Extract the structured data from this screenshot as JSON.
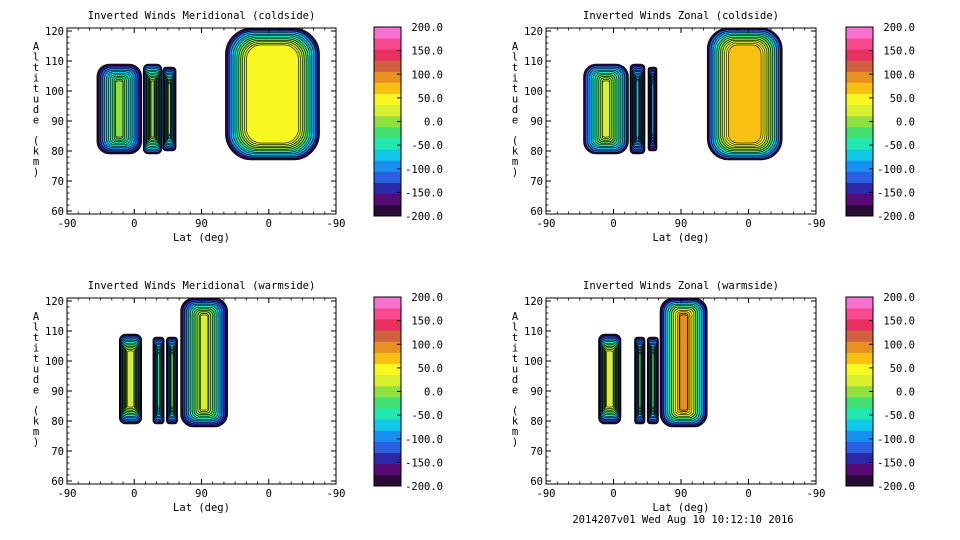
{
  "footer": "2014207v01 Wed Aug 10 10:12:10 2016",
  "colorbar": {
    "ticks": [
      200.0,
      150.0,
      100.0,
      50.0,
      0.0,
      -50.0,
      -100.0,
      -150.0,
      -200.0
    ],
    "tick_labels": [
      "200.0",
      "150.0",
      "100.0",
      "50.0",
      "0.0",
      "-50.0",
      "-100.0",
      "-150.0",
      "-200.0"
    ],
    "colors": [
      "#2a0a36",
      "#5a0a78",
      "#2a2aa8",
      "#2a60e0",
      "#1890f0",
      "#10c8e8",
      "#20e8b0",
      "#40e070",
      "#90e040",
      "#d8f030",
      "#f8f820",
      "#f8c010",
      "#e89020",
      "#d06040",
      "#e83060",
      "#f84890",
      "#f870d0"
    ]
  },
  "chart_data": [
    {
      "type": "heatmap",
      "title": "Inverted Winds Meridional (coldside)",
      "xlabel": "Lat (deg)",
      "ylabel": "Altitude (km)",
      "x_ticks": [
        "-90",
        "0",
        "90",
        "0",
        "-90"
      ],
      "y_ticks": [
        60,
        70,
        80,
        90,
        100,
        110,
        120
      ],
      "ylim": [
        59,
        121
      ],
      "zlim": [
        -200,
        200
      ],
      "blobs": [
        {
          "x": [
            -50,
            10
          ],
          "y": [
            79,
            109
          ],
          "core": [
            -5,
            10
          ]
        },
        {
          "x": [
            12,
            37
          ],
          "y": [
            79,
            109
          ],
          "core": [
            60,
            15
          ]
        },
        {
          "x": [
            38,
            56
          ],
          "y": [
            80,
            108
          ],
          "core": [
            -20,
            0
          ]
        },
        {
          "x": [
            122,
            248
          ],
          "y": [
            77,
            121
          ],
          "core": [
            10,
            45
          ]
        }
      ]
    },
    {
      "type": "heatmap",
      "title": "Inverted Winds Zonal (coldside)",
      "xlabel": "Lat (deg)",
      "ylabel": "Altitude (km)",
      "x_ticks": [
        "-90",
        "0",
        "90",
        "0",
        "-90"
      ],
      "y_ticks": [
        60,
        70,
        80,
        90,
        100,
        110,
        120
      ],
      "ylim": [
        59,
        121
      ],
      "zlim": [
        -200,
        200
      ],
      "blobs": [
        {
          "x": [
            -40,
            20
          ],
          "y": [
            79,
            109
          ],
          "core": [
            15,
            40
          ]
        },
        {
          "x": [
            22,
            42
          ],
          "y": [
            79,
            109
          ],
          "core": [
            -30,
            -60
          ]
        },
        {
          "x": [
            46,
            58
          ],
          "y": [
            80,
            108
          ],
          "core": [
            -60,
            -80
          ]
        },
        {
          "x": [
            125,
            225
          ],
          "y": [
            77,
            121
          ],
          "core": [
            20,
            70
          ]
        }
      ]
    },
    {
      "type": "heatmap",
      "title": "Inverted Winds Meridional (warmside)",
      "xlabel": "Lat (deg)",
      "ylabel": "Altitude (km)",
      "x_ticks": [
        "-90",
        "0",
        "90",
        "0",
        "-90"
      ],
      "y_ticks": [
        60,
        70,
        80,
        90,
        100,
        110,
        120
      ],
      "ylim": [
        59,
        121
      ],
      "zlim": [
        -200,
        200
      ],
      "blobs": [
        {
          "x": [
            -20,
            10
          ],
          "y": [
            79,
            109
          ],
          "core": [
            5,
            30
          ]
        },
        {
          "x": [
            25,
            40
          ],
          "y": [
            79,
            108
          ],
          "core": [
            -20,
            -10
          ]
        },
        {
          "x": [
            43,
            58
          ],
          "y": [
            79,
            108
          ],
          "core": [
            -10,
            0
          ]
        },
        {
          "x": [
            62,
            125
          ],
          "y": [
            78,
            121
          ],
          "core": [
            -10,
            40
          ]
        }
      ]
    },
    {
      "type": "heatmap",
      "title": "Inverted Winds Zonal (warmside)",
      "xlabel": "Lat (deg)",
      "ylabel": "Altitude (km)",
      "x_ticks": [
        "-90",
        "0",
        "90",
        "0",
        "-90"
      ],
      "y_ticks": [
        60,
        70,
        80,
        90,
        100,
        110,
        120
      ],
      "ylim": [
        59,
        121
      ],
      "zlim": [
        -200,
        200
      ],
      "blobs": [
        {
          "x": [
            -20,
            10
          ],
          "y": [
            79,
            109
          ],
          "core": [
            -20,
            40
          ]
        },
        {
          "x": [
            28,
            42
          ],
          "y": [
            79,
            108
          ],
          "core": [
            -40,
            -10
          ]
        },
        {
          "x": [
            45,
            60
          ],
          "y": [
            79,
            108
          ],
          "core": [
            -20,
            -10
          ]
        },
        {
          "x": [
            62,
            125
          ],
          "y": [
            78,
            121
          ],
          "core": [
            0,
            110
          ]
        }
      ]
    }
  ]
}
